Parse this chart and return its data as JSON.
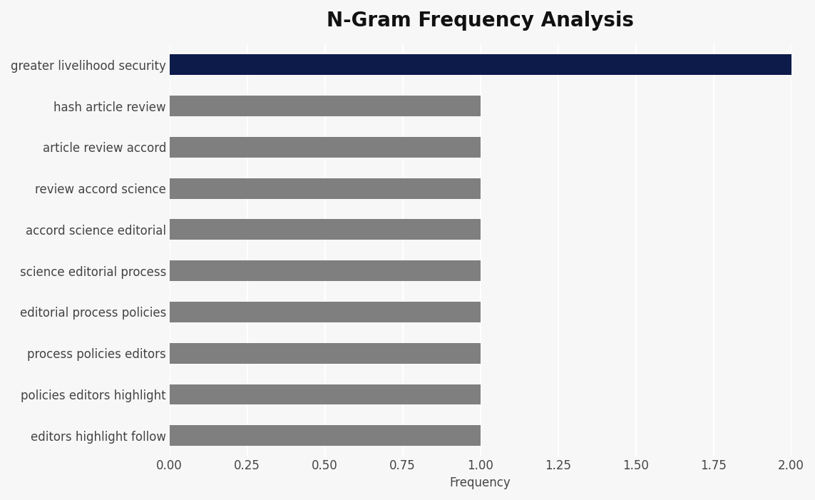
{
  "title": "N-Gram Frequency Analysis",
  "categories": [
    "editors highlight follow",
    "policies editors highlight",
    "process policies editors",
    "editorial process policies",
    "science editorial process",
    "accord science editorial",
    "review accord science",
    "article review accord",
    "hash article review",
    "greater livelihood security"
  ],
  "values": [
    1,
    1,
    1,
    1,
    1,
    1,
    1,
    1,
    1,
    2
  ],
  "bar_colors": [
    "#7f7f7f",
    "#7f7f7f",
    "#7f7f7f",
    "#7f7f7f",
    "#7f7f7f",
    "#7f7f7f",
    "#7f7f7f",
    "#7f7f7f",
    "#7f7f7f",
    "#0d1b4b"
  ],
  "xlabel": "Frequency",
  "xlim": [
    0,
    2.0
  ],
  "xticks": [
    0.0,
    0.25,
    0.5,
    0.75,
    1.0,
    1.25,
    1.5,
    1.75,
    2.0
  ],
  "background_color": "#f7f7f7",
  "plot_bg_color": "#f7f7f7",
  "grid_color": "#ffffff",
  "title_fontsize": 20,
  "label_fontsize": 12,
  "tick_fontsize": 12,
  "bar_height": 0.5
}
